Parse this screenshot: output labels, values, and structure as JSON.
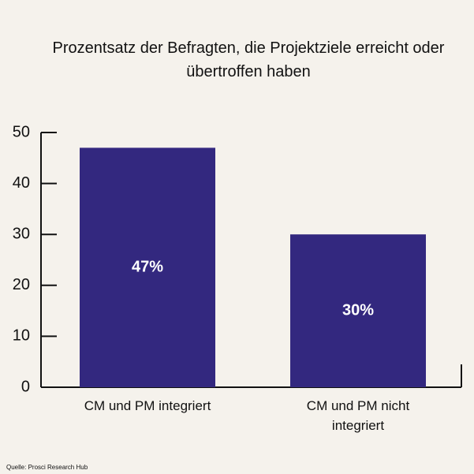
{
  "chart_data": {
    "type": "bar",
    "title": "Prozentsatz der Befragten, die Projektziele erreicht oder übertroffen haben",
    "source": "Quelle: Prosci Research Hub",
    "categories": [
      "CM und PM integriert",
      "CM und PM nicht integriert"
    ],
    "values": [
      47,
      30
    ],
    "value_labels": [
      "47%",
      "30%"
    ],
    "color": "#33287f",
    "ylim": [
      0,
      50
    ],
    "yticks": [
      0,
      10,
      20,
      30,
      40,
      50
    ],
    "grid": false
  }
}
